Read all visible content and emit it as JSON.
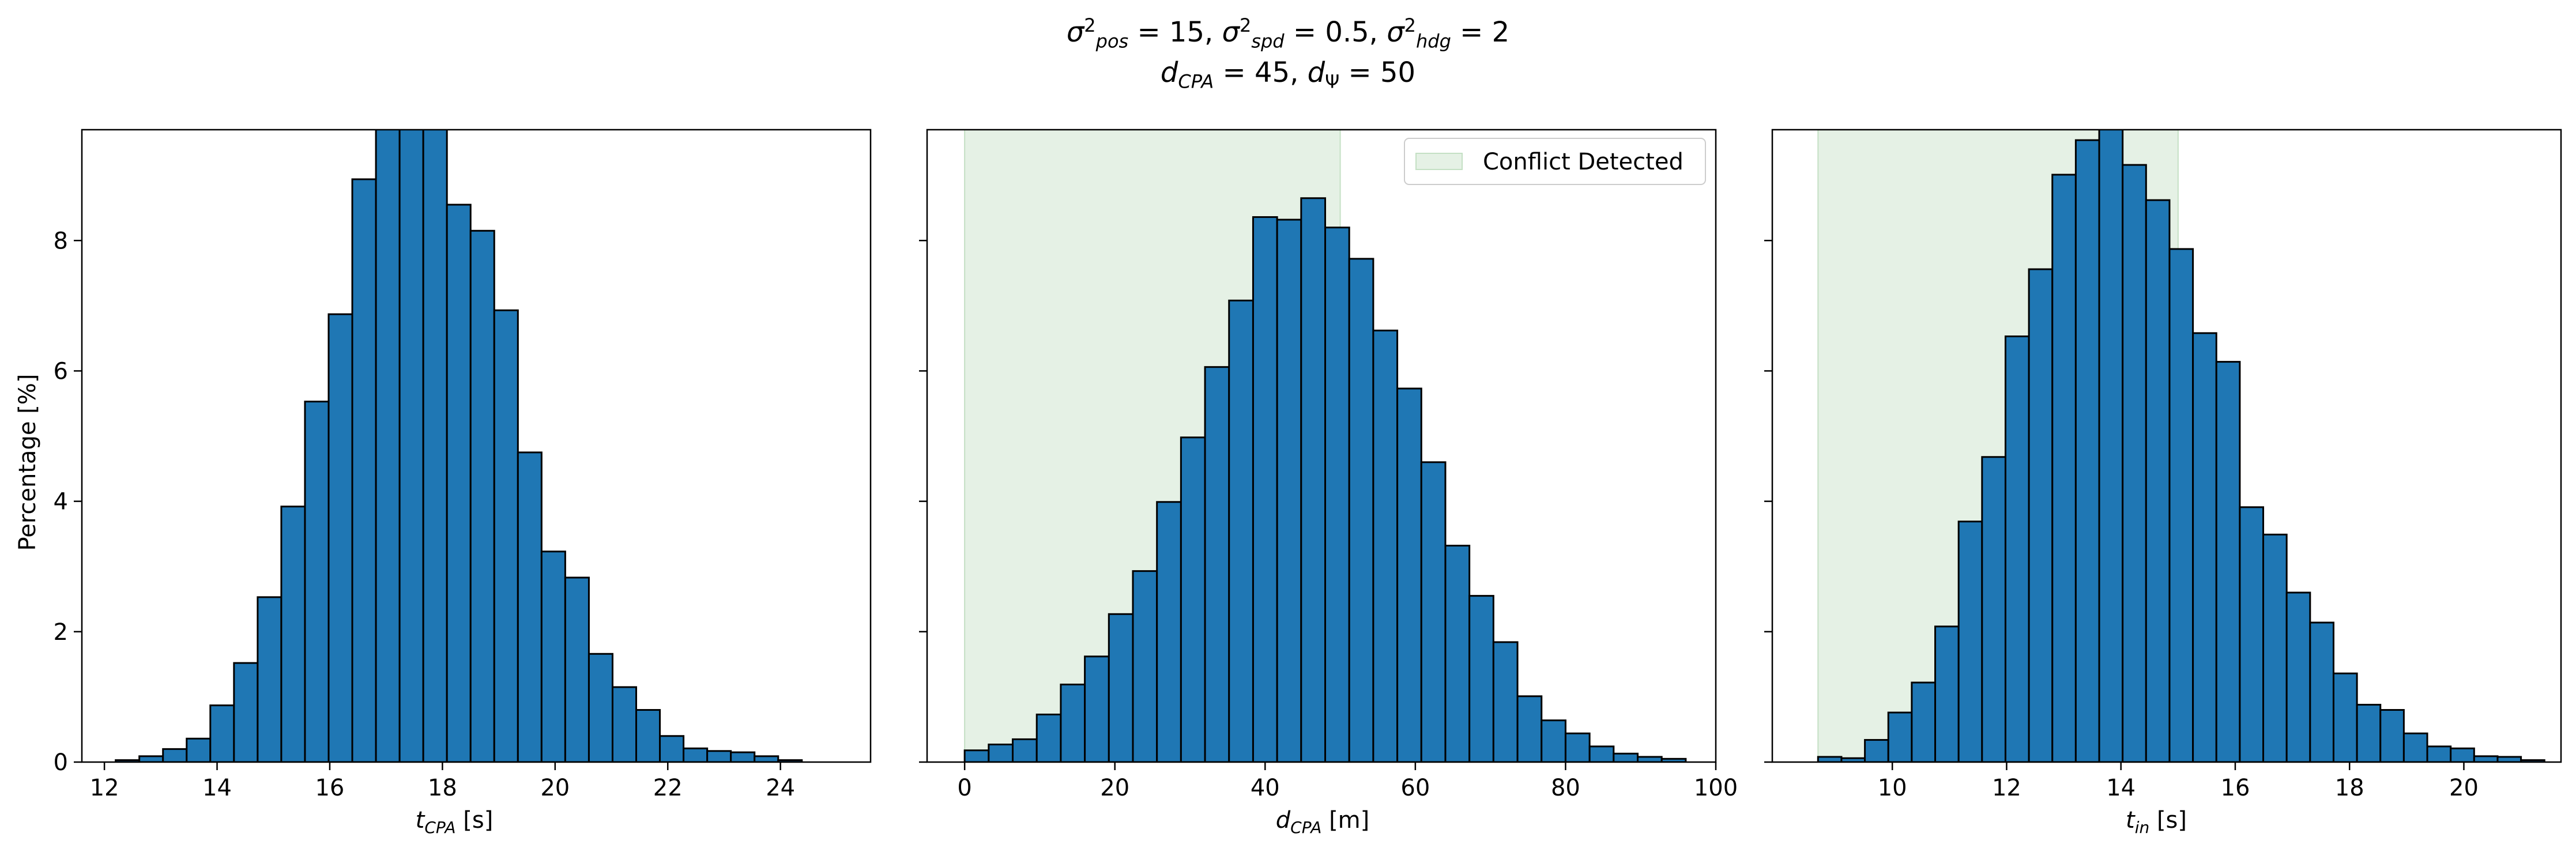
{
  "figure": {
    "title_parts": {
      "sigma": "σ",
      "sq": "2",
      "pos": "pos",
      "spd": "spd",
      "hdg": "hdg",
      "v_pos": "15",
      "v_spd": "0.5",
      "v_hdg": "2",
      "d": "d",
      "cpa": "CPA",
      "psi": "Ψ",
      "v_dcpa": "45",
      "v_dpsi": "50",
      "eq": " = ",
      "sep": ", "
    }
  },
  "colors": {
    "bar_fill": "#1f77b4",
    "bar_edge": "#000000",
    "conflict_fill": "#e5f1e5",
    "conflict_edge": "#c4e0c4"
  },
  "chart_data": [
    {
      "type": "bar",
      "xlabel": {
        "var": "t",
        "sub": "CPA",
        "unit": " [s]"
      },
      "ylabel": "Percentage [%]",
      "xlim": [
        11.6,
        25.6
      ],
      "ylim": [
        0,
        9.7
      ],
      "xticks": [
        12,
        14,
        16,
        18,
        20,
        22,
        24
      ],
      "yticks": [
        0,
        2,
        4,
        6,
        8
      ],
      "bin_start": 12.2,
      "bin_width": 0.42,
      "values": [
        0.03,
        0.09,
        0.2,
        0.36,
        0.87,
        1.52,
        2.53,
        3.92,
        5.53,
        6.87,
        8.94,
        9.9,
        9.85,
        9.75,
        8.55,
        8.15,
        6.93,
        4.75,
        3.23,
        2.83,
        1.66,
        1.15,
        0.8,
        0.4,
        0.21,
        0.17,
        0.15,
        0.09,
        0.03
      ],
      "conflict_region": null
    },
    {
      "type": "bar",
      "xlabel": {
        "var": "d",
        "sub": "CPA",
        "unit": " [m]"
      },
      "ylabel": "",
      "xlim": [
        -5,
        100
      ],
      "ylim": [
        0,
        9.7
      ],
      "xticks": [
        0,
        20,
        40,
        60,
        80,
        100
      ],
      "yticks": [
        0,
        2,
        4,
        6,
        8
      ],
      "bin_start": 0,
      "bin_width": 3.2,
      "values": [
        0.18,
        0.27,
        0.35,
        0.73,
        1.19,
        1.62,
        2.27,
        2.93,
        3.99,
        4.98,
        6.06,
        7.08,
        8.36,
        8.32,
        8.65,
        8.2,
        7.72,
        6.62,
        5.73,
        4.6,
        3.32,
        2.55,
        1.84,
        1.01,
        0.64,
        0.44,
        0.24,
        0.13,
        0.08,
        0.05
      ],
      "conflict_region": {
        "x0": 0,
        "x1": 50,
        "label": "Conflict Detected"
      },
      "legend": "top-right"
    },
    {
      "type": "bar",
      "xlabel": {
        "var": "t",
        "sub": "in",
        "unit": " [s]"
      },
      "ylabel": "",
      "xlim": [
        7.9,
        21.7
      ],
      "ylim": [
        0,
        9.7
      ],
      "xticks": [
        10,
        12,
        14,
        16,
        18,
        20
      ],
      "yticks": [
        0,
        2,
        4,
        6,
        8
      ],
      "bin_start": 8.7,
      "bin_width": 0.41,
      "values": [
        0.08,
        0.06,
        0.34,
        0.76,
        1.22,
        2.08,
        3.69,
        4.68,
        6.53,
        7.56,
        9.01,
        9.54,
        9.9,
        9.16,
        8.62,
        7.87,
        6.58,
        6.14,
        3.91,
        3.49,
        2.6,
        2.14,
        1.36,
        0.88,
        0.8,
        0.44,
        0.24,
        0.21,
        0.09,
        0.08,
        0.03
      ],
      "conflict_region": {
        "x0": 8.7,
        "x1": 15.0,
        "label": ""
      }
    }
  ]
}
